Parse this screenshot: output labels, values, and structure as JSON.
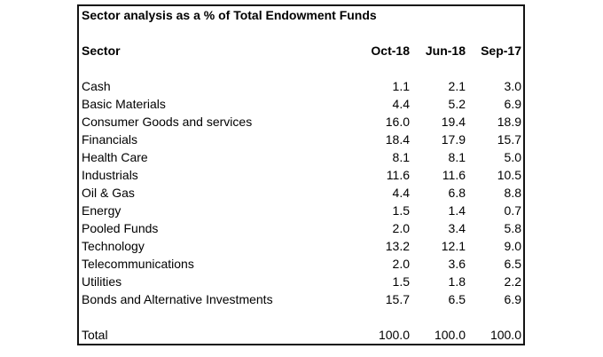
{
  "table": {
    "title": "Sector analysis as a % of Total Endowment Funds",
    "columns": [
      "Sector",
      "Oct-18",
      "Jun-18",
      "Sep-17"
    ],
    "rows": [
      {
        "sector": "Cash",
        "oct18": "1.1",
        "jun18": "2.1",
        "sep17": "3.0"
      },
      {
        "sector": "Basic Materials",
        "oct18": "4.4",
        "jun18": "5.2",
        "sep17": "6.9"
      },
      {
        "sector": "Consumer Goods and services",
        "oct18": "16.0",
        "jun18": "19.4",
        "sep17": "18.9"
      },
      {
        "sector": "Financials",
        "oct18": "18.4",
        "jun18": "17.9",
        "sep17": "15.7"
      },
      {
        "sector": "Health Care",
        "oct18": "8.1",
        "jun18": "8.1",
        "sep17": "5.0"
      },
      {
        "sector": "Industrials",
        "oct18": "11.6",
        "jun18": "11.6",
        "sep17": "10.5"
      },
      {
        "sector": "Oil & Gas",
        "oct18": "4.4",
        "jun18": "6.8",
        "sep17": "8.8"
      },
      {
        "sector": "Energy",
        "oct18": "1.5",
        "jun18": "1.4",
        "sep17": "0.7"
      },
      {
        "sector": "Pooled Funds",
        "oct18": "2.0",
        "jun18": "3.4",
        "sep17": "5.8"
      },
      {
        "sector": "Technology",
        "oct18": "13.2",
        "jun18": "12.1",
        "sep17": "9.0"
      },
      {
        "sector": "Telecommunications",
        "oct18": "2.0",
        "jun18": "3.6",
        "sep17": "6.5"
      },
      {
        "sector": "Utilities",
        "oct18": "1.5",
        "jun18": "1.8",
        "sep17": "2.2"
      },
      {
        "sector": "Bonds and Alternative Investments",
        "oct18": "15.7",
        "jun18": "6.5",
        "sep17": "6.9"
      }
    ],
    "total": {
      "label": "Total",
      "oct18": "100.0",
      "jun18": "100.0",
      "sep17": "100.0"
    }
  },
  "chart_data": {
    "type": "table",
    "title": "Sector analysis as a % of Total Endowment Funds",
    "categories": [
      "Cash",
      "Basic Materials",
      "Consumer Goods and services",
      "Financials",
      "Health Care",
      "Industrials",
      "Oil & Gas",
      "Energy",
      "Pooled Funds",
      "Technology",
      "Telecommunications",
      "Utilities",
      "Bonds and Alternative Investments"
    ],
    "series": [
      {
        "name": "Oct-18",
        "values": [
          1.1,
          4.4,
          16.0,
          18.4,
          8.1,
          11.6,
          4.4,
          1.5,
          2.0,
          13.2,
          2.0,
          1.5,
          15.7
        ]
      },
      {
        "name": "Jun-18",
        "values": [
          2.1,
          5.2,
          19.4,
          17.9,
          8.1,
          11.6,
          6.8,
          1.4,
          3.4,
          12.1,
          3.6,
          1.8,
          6.5
        ]
      },
      {
        "name": "Sep-17",
        "values": [
          3.0,
          6.9,
          18.9,
          15.7,
          5.0,
          10.5,
          8.8,
          0.7,
          5.8,
          9.0,
          6.5,
          2.2,
          6.9
        ]
      }
    ],
    "totals": {
      "Oct-18": 100.0,
      "Jun-18": 100.0,
      "Sep-17": 100.0
    }
  },
  "colors": {
    "border": "#131313",
    "text": "#000000",
    "background": "#ffffff"
  }
}
